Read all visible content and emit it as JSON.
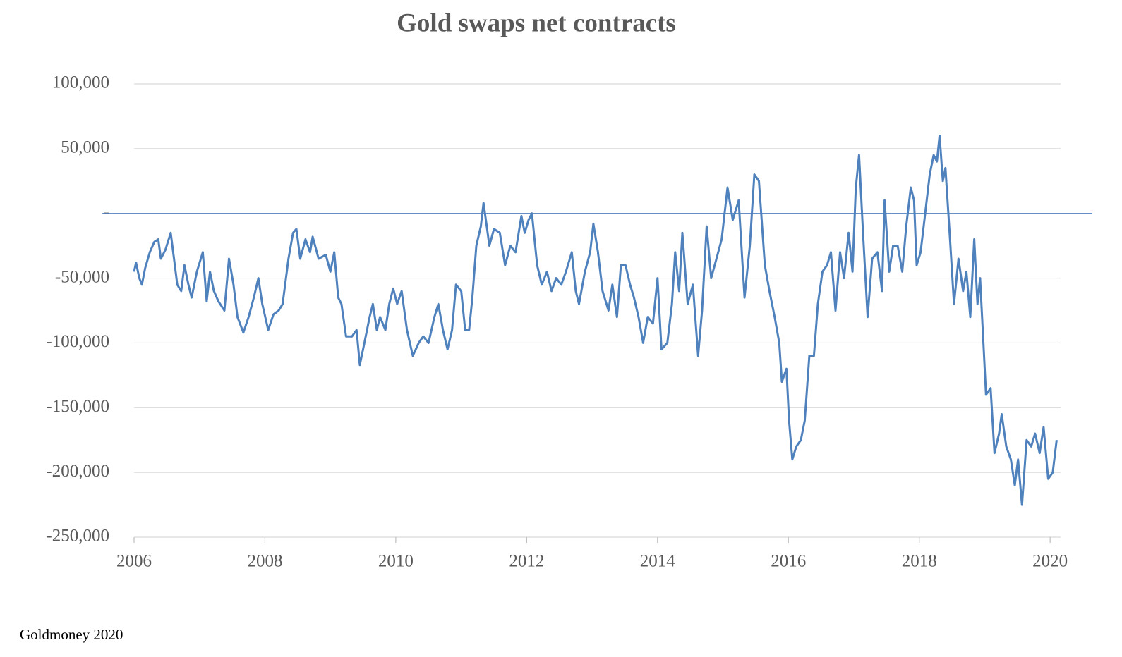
{
  "chart_data": {
    "type": "line",
    "title": "Gold swaps net  contracts",
    "source": "Goldmoney 2020",
    "x": [
      2006.0,
      2006.03,
      2006.08,
      2006.12,
      2006.17,
      2006.24,
      2006.31,
      2006.37,
      2006.41,
      2006.48,
      2006.56,
      2006.61,
      2006.66,
      2006.72,
      2006.77,
      2006.83,
      2006.88,
      2006.96,
      2007.05,
      2007.11,
      2007.16,
      2007.22,
      2007.29,
      2007.38,
      2007.45,
      2007.52,
      2007.58,
      2007.67,
      2007.75,
      2007.83,
      2007.9,
      2007.96,
      2008.05,
      2008.13,
      2008.21,
      2008.27,
      2008.36,
      2008.43,
      2008.48,
      2008.54,
      2008.62,
      2008.69,
      2008.73,
      2008.82,
      2008.93,
      2009.0,
      2009.06,
      2009.12,
      2009.17,
      2009.24,
      2009.33,
      2009.4,
      2009.45,
      2009.52,
      2009.6,
      2009.65,
      2009.71,
      2009.76,
      2009.84,
      2009.9,
      2009.96,
      2010.02,
      2010.09,
      2010.17,
      2010.26,
      2010.35,
      2010.42,
      2010.5,
      2010.59,
      2010.65,
      2010.72,
      2010.79,
      2010.86,
      2010.92,
      2011.0,
      2011.06,
      2011.12,
      2011.17,
      2011.23,
      2011.3,
      2011.34,
      2011.39,
      2011.43,
      2011.5,
      2011.59,
      2011.67,
      2011.75,
      2011.83,
      2011.92,
      2011.97,
      2012.03,
      2012.08,
      2012.16,
      2012.23,
      2012.31,
      2012.38,
      2012.45,
      2012.53,
      2012.6,
      2012.69,
      2012.75,
      2012.8,
      2012.89,
      2012.97,
      2013.02,
      2013.09,
      2013.16,
      2013.25,
      2013.31,
      2013.38,
      2013.44,
      2013.51,
      2013.58,
      2013.64,
      2013.71,
      2013.78,
      2013.85,
      2013.93,
      2014.0,
      2014.06,
      2014.15,
      2014.22,
      2014.27,
      2014.33,
      2014.38,
      2014.46,
      2014.54,
      2014.62,
      2014.68,
      2014.75,
      2014.82,
      2014.9,
      2014.98,
      2015.07,
      2015.15,
      2015.24,
      2015.33,
      2015.41,
      2015.48,
      2015.55,
      2015.64,
      2015.71,
      2015.79,
      2015.86,
      2015.9,
      2015.97,
      2016.01,
      2016.06,
      2016.12,
      2016.19,
      2016.25,
      2016.32,
      2016.39,
      2016.45,
      2016.52,
      2016.59,
      2016.65,
      2016.72,
      2016.79,
      2016.85,
      2016.92,
      2016.98,
      2017.03,
      2017.08,
      2017.14,
      2017.21,
      2017.28,
      2017.36,
      2017.43,
      2017.47,
      2017.54,
      2017.6,
      2017.67,
      2017.74,
      2017.8,
      2017.87,
      2017.92,
      2017.96,
      2018.02,
      2018.09,
      2018.16,
      2018.22,
      2018.27,
      2018.31,
      2018.36,
      2018.4,
      2018.47,
      2018.53,
      2018.6,
      2018.67,
      2018.72,
      2018.78,
      2018.84,
      2018.89,
      2018.93,
      2018.98,
      2019.02,
      2019.09,
      2019.15,
      2019.22,
      2019.26,
      2019.33,
      2019.4,
      2019.46,
      2019.51,
      2019.57,
      2019.64,
      2019.71,
      2019.77,
      2019.84,
      2019.9,
      2019.97,
      2020.04,
      2020.1
    ],
    "series": [
      {
        "name": "Gold swaps net contracts",
        "color": "#4f81bd",
        "values": [
          -45000,
          -38000,
          -50000,
          -55000,
          -42000,
          -30000,
          -22000,
          -20000,
          -35000,
          -28000,
          -15000,
          -35000,
          -55000,
          -60000,
          -40000,
          -55000,
          -65000,
          -45000,
          -30000,
          -68000,
          -45000,
          -60000,
          -68000,
          -75000,
          -35000,
          -55000,
          -80000,
          -92000,
          -80000,
          -65000,
          -50000,
          -70000,
          -90000,
          -78000,
          -75000,
          -70000,
          -35000,
          -15000,
          -12000,
          -35000,
          -20000,
          -30000,
          -18000,
          -35000,
          -32000,
          -45000,
          -30000,
          -65000,
          -70000,
          -95000,
          -95000,
          -90000,
          -117000,
          -100000,
          -80000,
          -70000,
          -90000,
          -80000,
          -90000,
          -70000,
          -58000,
          -70000,
          -60000,
          -90000,
          -110000,
          -100000,
          -95000,
          -100000,
          -80000,
          -70000,
          -90000,
          -105000,
          -90000,
          -55000,
          -60000,
          -90000,
          -90000,
          -65000,
          -25000,
          -10000,
          8000,
          -10000,
          -25000,
          -12000,
          -15000,
          -40000,
          -25000,
          -30000,
          -2000,
          -15000,
          -5000,
          0,
          -40000,
          -55000,
          -45000,
          -60000,
          -50000,
          -55000,
          -45000,
          -30000,
          -60000,
          -70000,
          -45000,
          -30000,
          -8000,
          -30000,
          -60000,
          -75000,
          -55000,
          -80000,
          -40000,
          -40000,
          -55000,
          -65000,
          -80000,
          -100000,
          -80000,
          -85000,
          -50000,
          -105000,
          -100000,
          -70000,
          -30000,
          -60000,
          -15000,
          -70000,
          -55000,
          -110000,
          -75000,
          -10000,
          -50000,
          -35000,
          -20000,
          20000,
          -5000,
          10000,
          -65000,
          -25000,
          30000,
          25000,
          -40000,
          -60000,
          -80000,
          -100000,
          -130000,
          -120000,
          -160000,
          -190000,
          -180000,
          -175000,
          -160000,
          -110000,
          -110000,
          -70000,
          -45000,
          -40000,
          -30000,
          -75000,
          -30000,
          -50000,
          -15000,
          -45000,
          20000,
          45000,
          -15000,
          -80000,
          -35000,
          -30000,
          -60000,
          10000,
          -45000,
          -25000,
          -25000,
          -45000,
          -10000,
          20000,
          10000,
          -40000,
          -30000,
          0,
          30000,
          45000,
          40000,
          60000,
          25000,
          35000,
          -20000,
          -70000,
          -35000,
          -60000,
          -45000,
          -80000,
          -20000,
          -70000,
          -50000,
          -100000,
          -140000,
          -135000,
          -185000,
          -170000,
          -155000,
          -180000,
          -190000,
          -210000,
          -190000,
          -225000,
          -175000,
          -180000,
          -170000,
          -185000,
          -165000,
          -205000,
          -200000,
          -175000
        ]
      }
    ],
    "xlim": [
      2006,
      2020.16
    ],
    "xticks": [
      2006,
      2008,
      2010,
      2012,
      2014,
      2016,
      2018,
      2020
    ],
    "ylim": [
      -250000,
      100000
    ],
    "yticks": [
      {
        "value": -250000,
        "label": "-250,000"
      },
      {
        "value": -200000,
        "label": "-200,000"
      },
      {
        "value": -150000,
        "label": "-150,000"
      },
      {
        "value": -100000,
        "label": "-100,000"
      },
      {
        "value": -50000,
        "label": "-50,000"
      },
      {
        "value": 0,
        "label": "-"
      },
      {
        "value": 50000,
        "label": "50,000"
      },
      {
        "value": 100000,
        "label": "100,000"
      }
    ],
    "grid": true
  }
}
